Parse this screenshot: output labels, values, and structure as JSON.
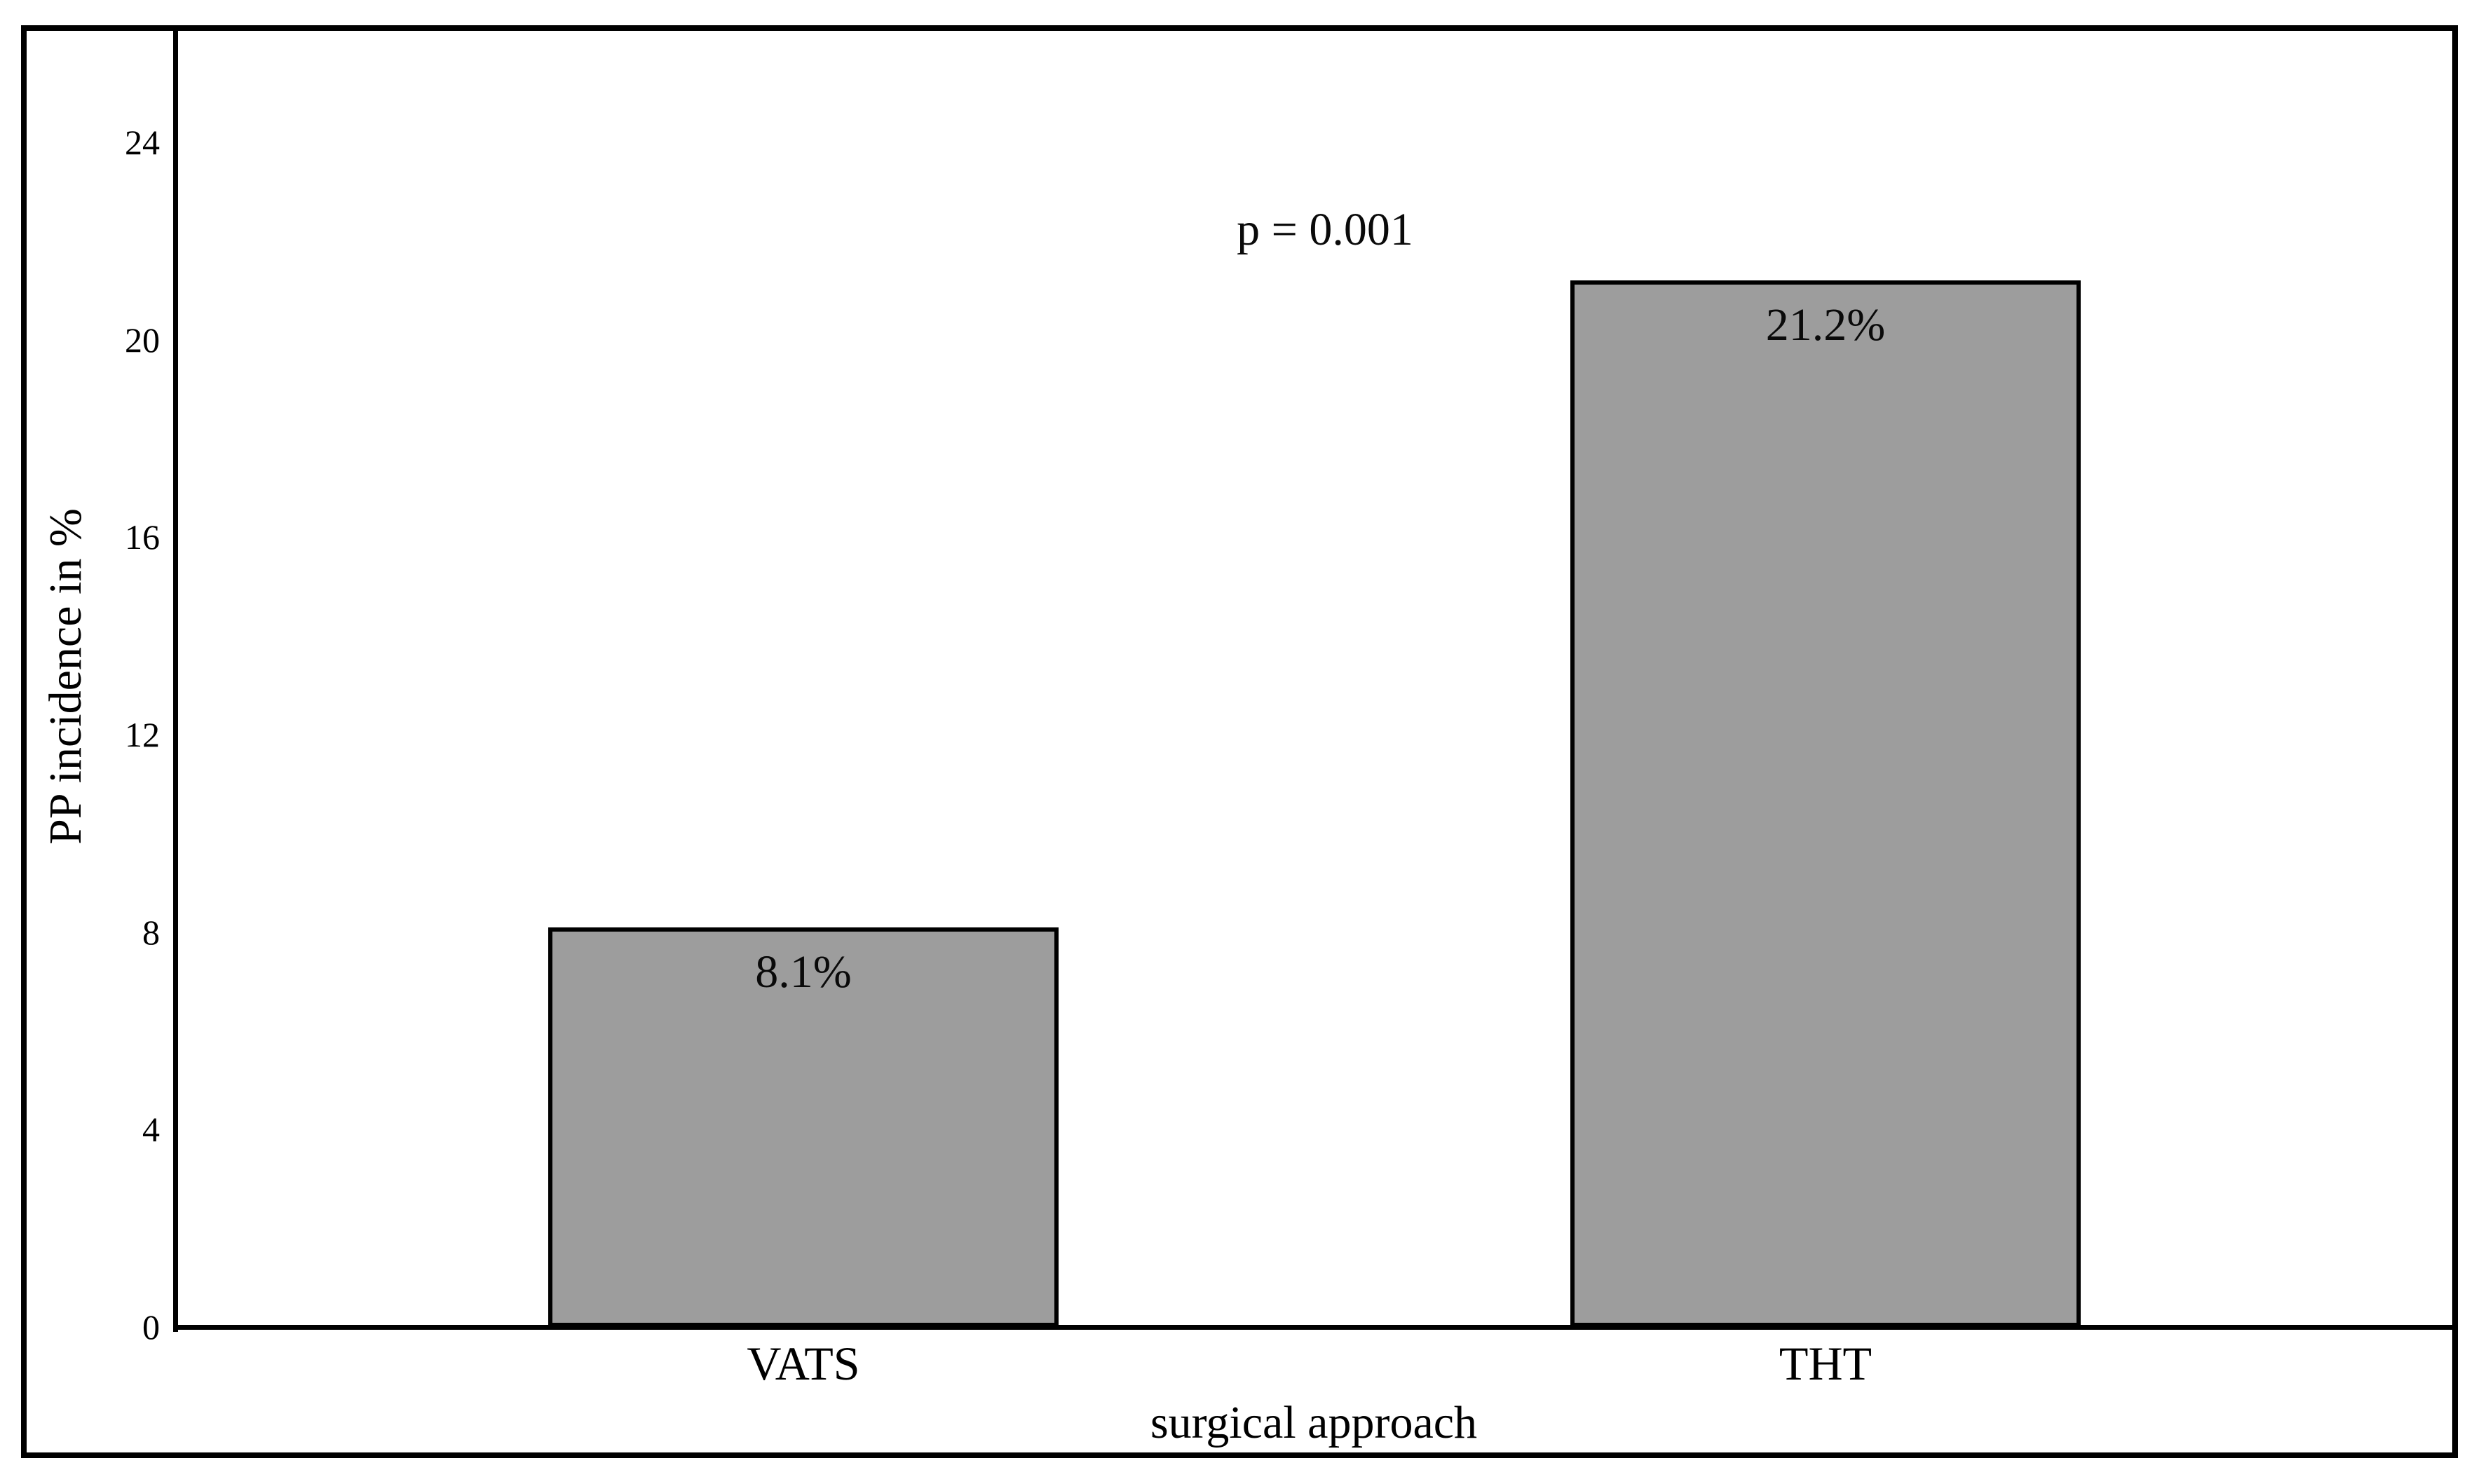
{
  "chart_data": {
    "type": "bar",
    "title": "",
    "categories": [
      "VATS",
      "THT"
    ],
    "values": [
      8.1,
      21.2
    ],
    "bar_labels": [
      "8.1%",
      "21.2%"
    ],
    "xlabel": "surgical approach",
    "ylabel": "PP incidence in %",
    "yticks": [
      0,
      4,
      8,
      12,
      16,
      20,
      24
    ],
    "ylim": [
      0,
      26.3
    ],
    "annotation": "p = 0.001",
    "grid": false,
    "legend": "none",
    "bar_fill_color": "#9d9d9d",
    "bar_border_color": "#000000",
    "axis_color": "#000000",
    "text_color": "#000000",
    "frame_color": "#000000"
  }
}
